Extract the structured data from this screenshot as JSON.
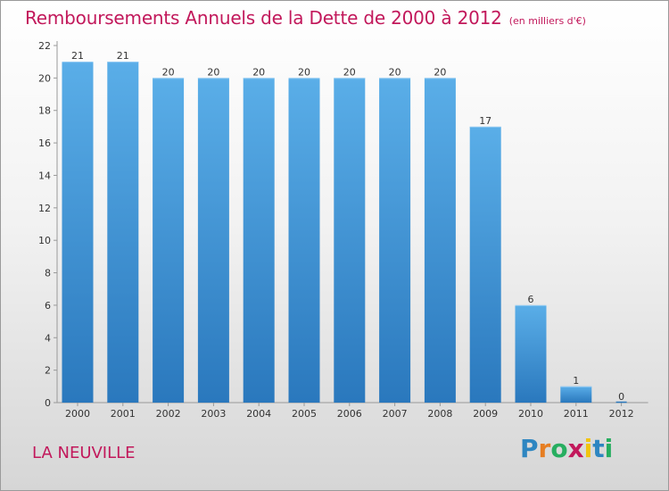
{
  "chart_data": {
    "type": "bar",
    "title": "Remboursements Annuels de la Dette de 2000 à 2012",
    "unit_label": "(en milliers d'€)",
    "categories": [
      "2000",
      "2001",
      "2002",
      "2003",
      "2004",
      "2005",
      "2006",
      "2007",
      "2008",
      "2009",
      "2010",
      "2011",
      "2012"
    ],
    "values": [
      21,
      21,
      20,
      20,
      20,
      20,
      20,
      20,
      20,
      17,
      6,
      1,
      0
    ],
    "ylim": [
      0,
      22
    ],
    "yticks": [
      0,
      2,
      4,
      6,
      8,
      10,
      12,
      14,
      16,
      18,
      20,
      22
    ],
    "grid": false,
    "bar_color": "#4a9fe0"
  },
  "commune": "LA NEUVILLE",
  "brand": {
    "letters": [
      {
        "ch": "P",
        "color": "#2e86c1"
      },
      {
        "ch": "r",
        "color": "#e67e22"
      },
      {
        "ch": "o",
        "color": "#27ae60"
      },
      {
        "ch": "x",
        "color": "#c2185b"
      },
      {
        "ch": "i",
        "color": "#f1c40f"
      },
      {
        "ch": "t",
        "color": "#2e86c1"
      },
      {
        "ch": "i",
        "color": "#27ae60"
      }
    ]
  }
}
